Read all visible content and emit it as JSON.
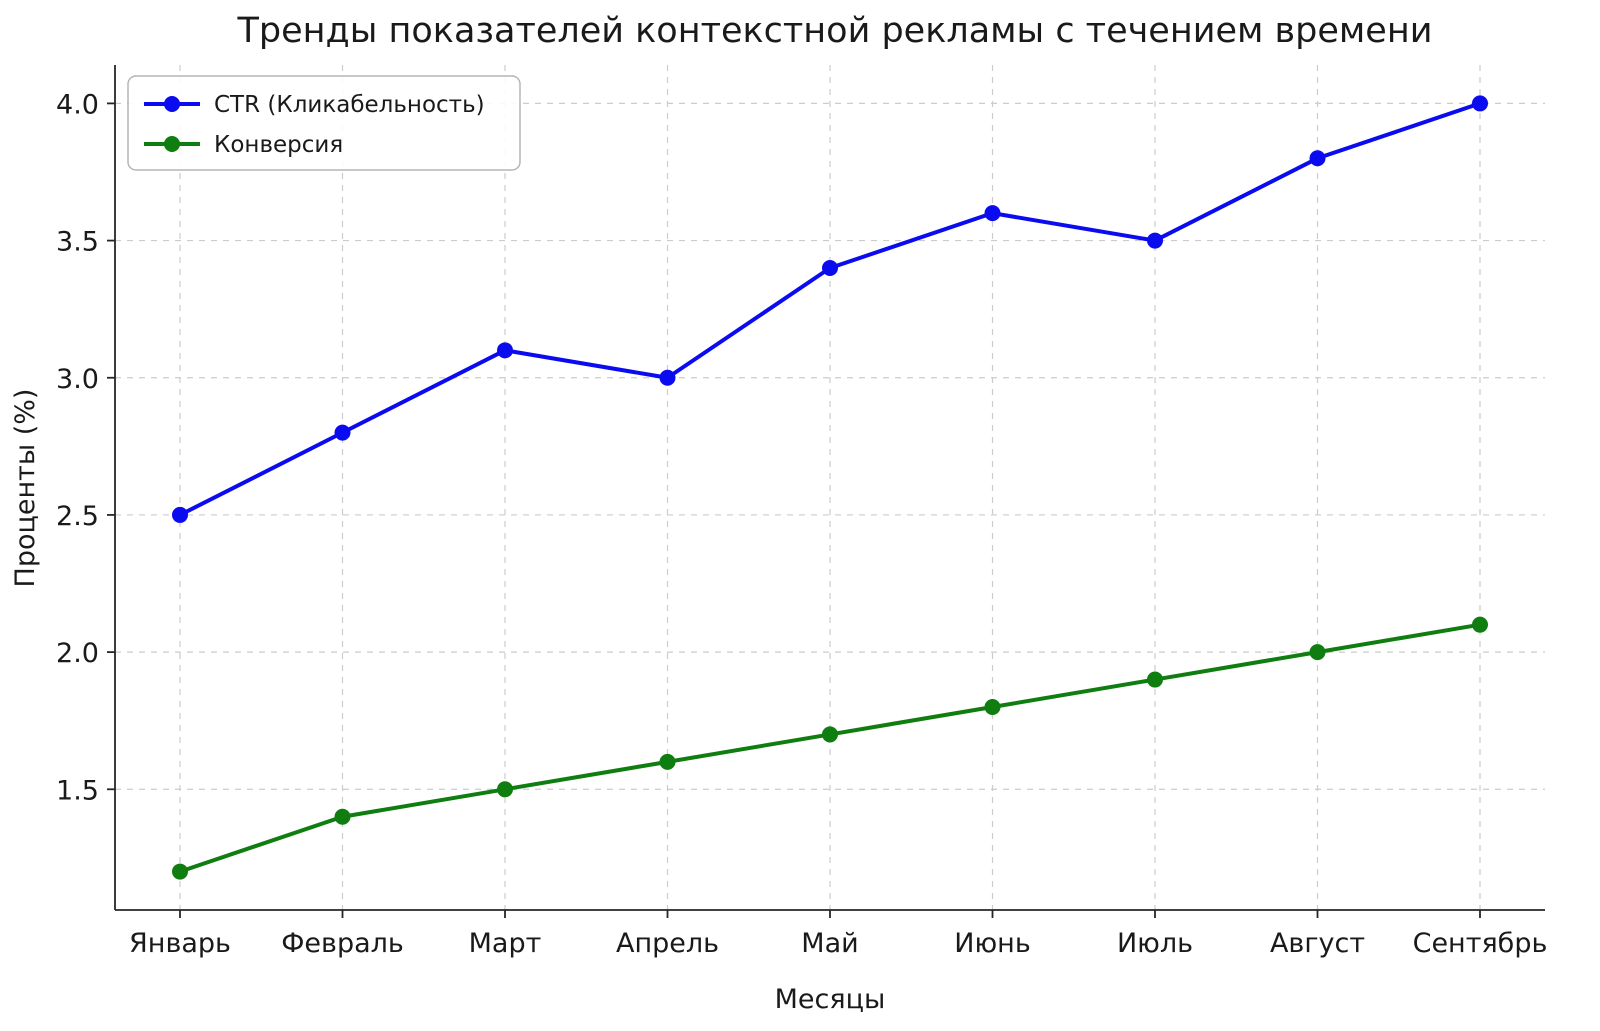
{
  "chart_data": {
    "type": "line",
    "title": "Тренды показателей контекстной рекламы с течением времени",
    "xlabel": "Месяцы",
    "ylabel": "Проценты (%)",
    "categories": [
      "Январь",
      "Февраль",
      "Март",
      "Апрель",
      "Май",
      "Июнь",
      "Июль",
      "Август",
      "Сентябрь"
    ],
    "series": [
      {
        "name": "CTR (Кликабельность)",
        "color": "#0b0bf0",
        "values": [
          2.5,
          2.8,
          3.1,
          3.0,
          3.4,
          3.6,
          3.5,
          3.8,
          4.0
        ]
      },
      {
        "name": "Конверсия",
        "color": "#0f7d0f",
        "values": [
          1.2,
          1.4,
          1.5,
          1.6,
          1.7,
          1.8,
          1.9,
          2.0,
          2.1
        ]
      }
    ],
    "yticks": [
      1.5,
      2.0,
      2.5,
      3.0,
      3.5,
      4.0
    ],
    "ylim": [
      1.06,
      4.14
    ],
    "xlim": [
      -0.4,
      8.4
    ],
    "grid": "dashed",
    "grid_color": "#cccccc",
    "legend_position": "upper left"
  }
}
